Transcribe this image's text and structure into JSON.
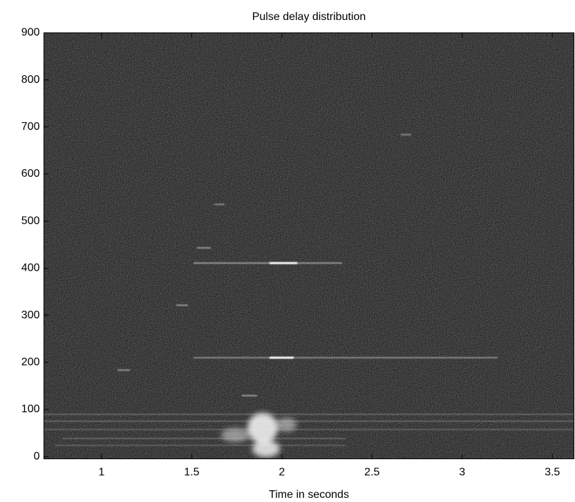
{
  "chart_data": {
    "type": "heatmap",
    "title": "Pulse delay distribution",
    "xlabel": "Time in seconds",
    "xlim": [
      0.68,
      3.62
    ],
    "xticks": [
      1,
      1.5,
      2,
      2.5,
      3,
      3.5
    ],
    "ylim": [
      -5,
      900
    ],
    "yticks": [
      0,
      100,
      200,
      300,
      400,
      500,
      600,
      700,
      800,
      900
    ],
    "colormap": "gray"
  }
}
